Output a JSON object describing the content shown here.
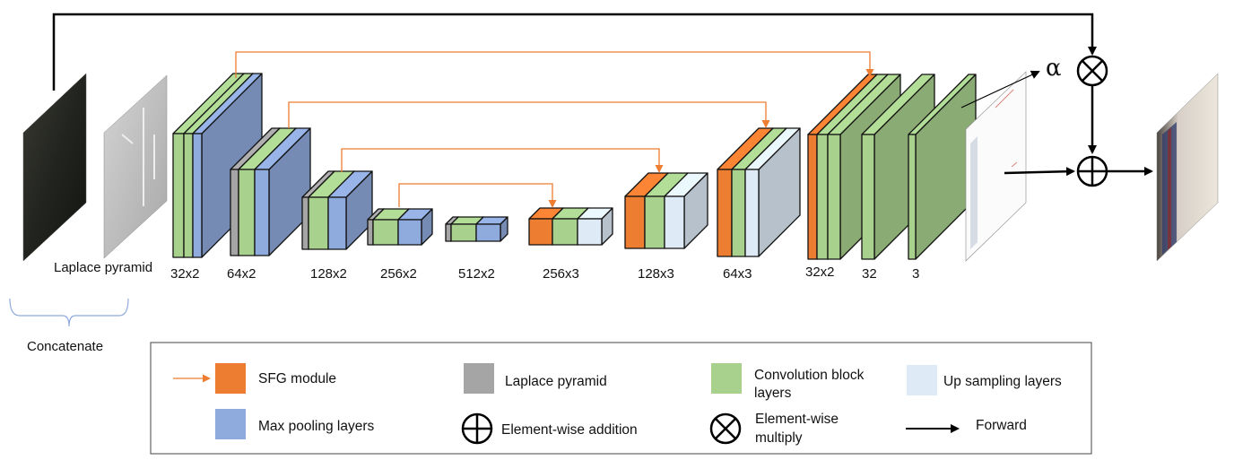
{
  "colors": {
    "sfg": "#ED7D31",
    "laplace": "#A5A5A5",
    "conv": "#A9D18E",
    "upsample": "#DEEBF7",
    "maxpool": "#8FAADC",
    "skip_arrow": "#ED7D31",
    "line": "#000000"
  },
  "inputs": {
    "laplace_pyramid_label": "Laplace pyramid",
    "concatenate_label": "Concatenate"
  },
  "blocks": [
    {
      "label": "32x2"
    },
    {
      "label": "64x2"
    },
    {
      "label": "128x2"
    },
    {
      "label": "256x2"
    },
    {
      "label": "512x2"
    },
    {
      "label": "256x3"
    },
    {
      "label": "128x3"
    },
    {
      "label": "64x3"
    },
    {
      "label": "32x2"
    },
    {
      "label": "32"
    },
    {
      "label": "3"
    }
  ],
  "alpha_symbol": "α",
  "legend": {
    "sfg": "SFG module",
    "laplace": "Laplace pyramid",
    "conv_line1": "Convolution block",
    "conv_line2": "layers",
    "upsample": "Up sampling layers",
    "maxpool": "Max pooling layers",
    "add": "Element-wise addition",
    "mult_line1": "Element-wise",
    "mult_line2": "multiply",
    "forward": "Forward"
  }
}
